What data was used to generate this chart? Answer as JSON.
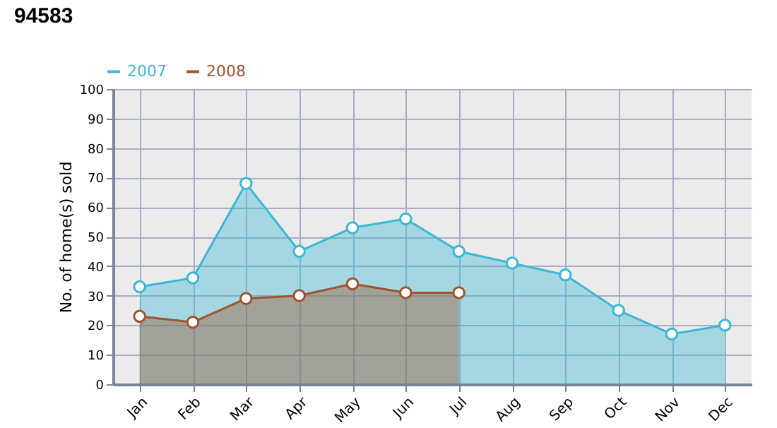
{
  "chart_data": {
    "type": "area",
    "title": "94583",
    "ylabel": "No. of home(s) sold",
    "categories": [
      "Jan",
      "Feb",
      "Mar",
      "Apr",
      "May",
      "Jun",
      "Jul",
      "Aug",
      "Sep",
      "Oct",
      "Nov",
      "Dec"
    ],
    "series": [
      {
        "name": "2007",
        "color": "#3ab8d4",
        "values": [
          33,
          36,
          68,
          45,
          53,
          56,
          45,
          41,
          37,
          25,
          17,
          20
        ]
      },
      {
        "name": "2008",
        "color": "#a0522d",
        "values": [
          23,
          21,
          29,
          30,
          34,
          31,
          31,
          null,
          null,
          null,
          null,
          null
        ]
      }
    ],
    "ylim": [
      0,
      100
    ],
    "yticks": [
      0,
      10,
      20,
      30,
      40,
      50,
      60,
      70,
      80,
      90,
      100
    ],
    "grid": true,
    "legend": "top left",
    "marker": "circle"
  }
}
